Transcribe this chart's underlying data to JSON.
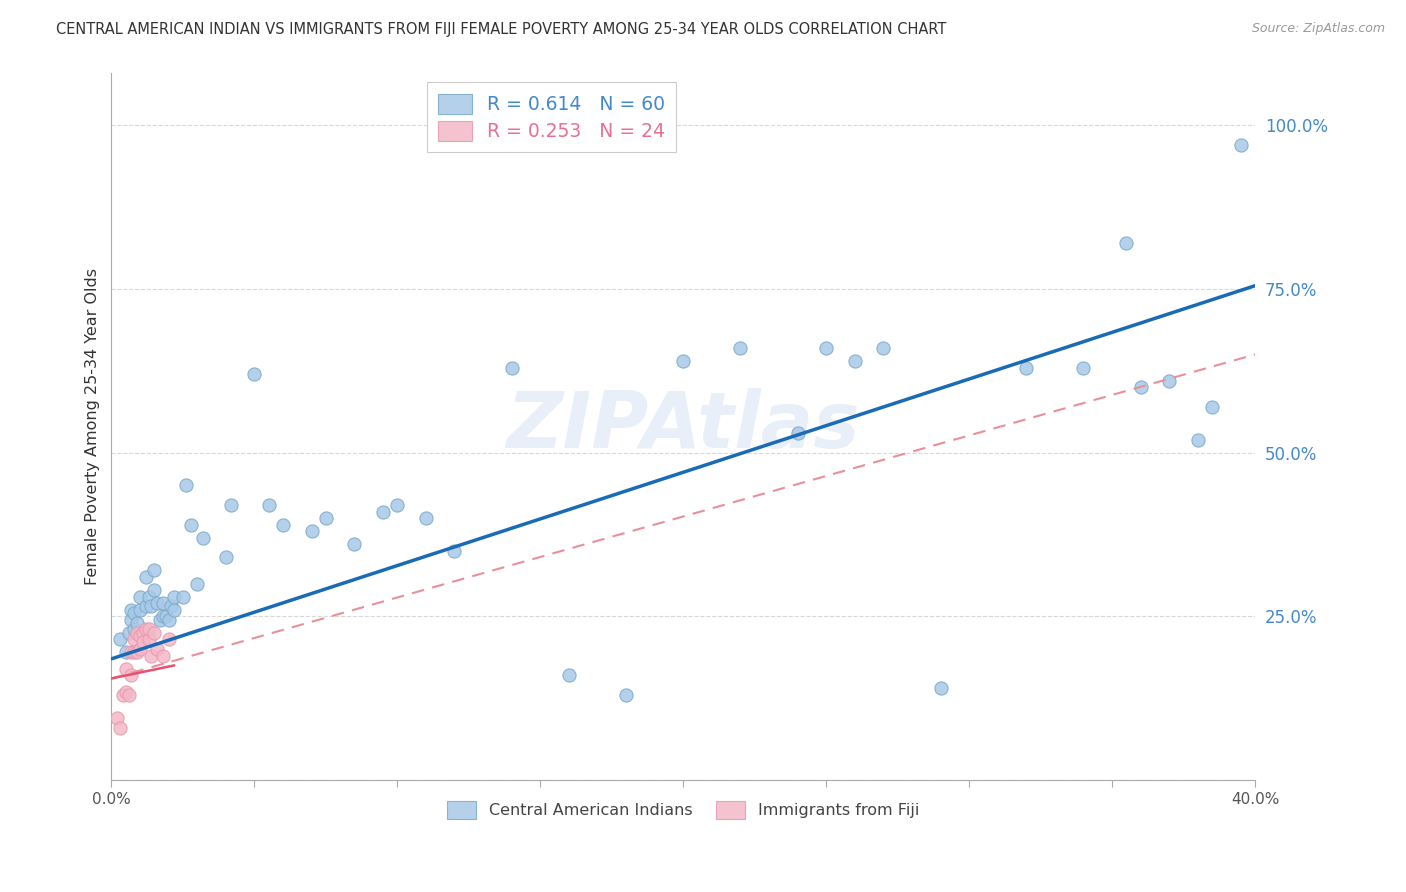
{
  "title": "CENTRAL AMERICAN INDIAN VS IMMIGRANTS FROM FIJI FEMALE POVERTY AMONG 25-34 YEAR OLDS CORRELATION CHART",
  "source": "Source: ZipAtlas.com",
  "ylabel": "Female Poverty Among 25-34 Year Olds",
  "xlim": [
    0.0,
    0.4
  ],
  "ylim": [
    0.0,
    1.08
  ],
  "xticks": [
    0.0,
    0.05,
    0.1,
    0.15,
    0.2,
    0.25,
    0.3,
    0.35,
    0.4
  ],
  "xtick_labels": [
    "0.0%",
    "",
    "",
    "",
    "",
    "",
    "",
    "",
    "40.0%"
  ],
  "ytick_positions": [
    0.0,
    0.25,
    0.5,
    0.75,
    1.0
  ],
  "ytick_labels": [
    "",
    "25.0%",
    "50.0%",
    "75.0%",
    "100.0%"
  ],
  "legend_blue_label": "R = 0.614   N = 60",
  "legend_pink_label": "R = 0.253   N = 24",
  "blue_color": "#a8c8e8",
  "blue_edge_color": "#7aaac8",
  "pink_color": "#f4b8c8",
  "pink_edge_color": "#e898b0",
  "blue_line_color": "#1a6bb5",
  "pink_line_color": "#e8909a",
  "watermark": "ZIPAtlas",
  "blue_scatter_x": [
    0.003,
    0.005,
    0.006,
    0.007,
    0.007,
    0.008,
    0.008,
    0.009,
    0.01,
    0.01,
    0.012,
    0.012,
    0.013,
    0.014,
    0.015,
    0.015,
    0.016,
    0.017,
    0.018,
    0.018,
    0.019,
    0.02,
    0.021,
    0.022,
    0.022,
    0.025,
    0.026,
    0.028,
    0.03,
    0.032,
    0.04,
    0.042,
    0.05,
    0.055,
    0.06,
    0.07,
    0.075,
    0.085,
    0.095,
    0.1,
    0.11,
    0.12,
    0.14,
    0.16,
    0.18,
    0.2,
    0.22,
    0.24,
    0.25,
    0.26,
    0.27,
    0.29,
    0.32,
    0.34,
    0.355,
    0.36,
    0.37,
    0.38,
    0.385,
    0.395
  ],
  "blue_scatter_y": [
    0.215,
    0.195,
    0.225,
    0.245,
    0.26,
    0.23,
    0.255,
    0.24,
    0.26,
    0.28,
    0.265,
    0.31,
    0.28,
    0.265,
    0.29,
    0.32,
    0.27,
    0.245,
    0.25,
    0.27,
    0.25,
    0.245,
    0.265,
    0.26,
    0.28,
    0.28,
    0.45,
    0.39,
    0.3,
    0.37,
    0.34,
    0.42,
    0.62,
    0.42,
    0.39,
    0.38,
    0.4,
    0.36,
    0.41,
    0.42,
    0.4,
    0.35,
    0.63,
    0.16,
    0.13,
    0.64,
    0.66,
    0.53,
    0.66,
    0.64,
    0.66,
    0.14,
    0.63,
    0.63,
    0.82,
    0.6,
    0.61,
    0.52,
    0.57,
    0.97
  ],
  "pink_scatter_x": [
    0.002,
    0.003,
    0.004,
    0.005,
    0.005,
    0.006,
    0.007,
    0.007,
    0.008,
    0.008,
    0.009,
    0.009,
    0.01,
    0.01,
    0.011,
    0.011,
    0.012,
    0.013,
    0.013,
    0.014,
    0.015,
    0.016,
    0.018,
    0.02
  ],
  "pink_scatter_y": [
    0.095,
    0.08,
    0.13,
    0.135,
    0.17,
    0.13,
    0.16,
    0.195,
    0.195,
    0.215,
    0.195,
    0.225,
    0.2,
    0.22,
    0.225,
    0.21,
    0.23,
    0.215,
    0.23,
    0.19,
    0.225,
    0.2,
    0.19,
    0.215
  ],
  "blue_line_x": [
    0.0,
    0.4
  ],
  "blue_line_y": [
    0.185,
    0.755
  ],
  "pink_line_x": [
    0.0,
    0.4
  ],
  "pink_line_y": [
    0.155,
    0.65
  ],
  "background_color": "#ffffff",
  "grid_color": "#d8d8d8",
  "legend_blue_color": "#4488cc",
  "legend_pink_color": "#e87090"
}
